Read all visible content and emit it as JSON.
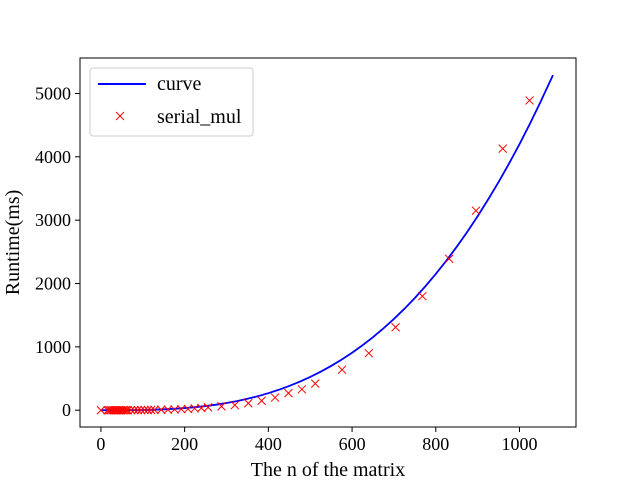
{
  "chart_data": {
    "type": "line",
    "title": "",
    "xlabel": "The n of the matrix",
    "ylabel": "Runtime(ms)",
    "xlim": [
      -50,
      1135
    ],
    "ylim": [
      -265,
      5560
    ],
    "xticks": [
      0,
      200,
      400,
      600,
      800,
      1000
    ],
    "yticks": [
      0,
      1000,
      2000,
      3000,
      4000,
      5000
    ],
    "grid": false,
    "legend": {
      "position": "top-left",
      "frame": true
    },
    "series": [
      {
        "name": "curve",
        "kind": "line",
        "color": "#0000ff",
        "model": "cubic",
        "coef_cubic": 4.2e-06,
        "x": [
          0,
          25,
          50,
          75,
          100,
          125,
          150,
          175,
          200,
          225,
          250,
          275,
          300,
          325,
          350,
          375,
          400,
          425,
          450,
          475,
          500,
          525,
          550,
          575,
          600,
          625,
          650,
          675,
          700,
          725,
          750,
          775,
          800,
          825,
          850,
          875,
          900,
          925,
          950,
          975,
          1000,
          1025,
          1050,
          1080
        ],
        "y": [
          0.0,
          0.07,
          0.53,
          1.77,
          4.2,
          8.2,
          14.18,
          22.51,
          33.6,
          47.84,
          65.63,
          87.36,
          113.4,
          144.18,
          180.08,
          221.48,
          268.8,
          322.42,
          382.73,
          450.14,
          525.0,
          607.75,
          698.78,
          798.47,
          907.2,
          1025.39,
          1153.43,
          1291.74,
          1440.6,
          1600.45,
          1771.88,
          1954.86,
          2150.4,
          2359.06,
          2579.67,
          2813.84,
          3061.8,
          3325.99,
          3601.13,
          3892.99,
          4200.0,
          4523.51,
          4862.93,
          5290.0
        ]
      },
      {
        "name": "serial_mul",
        "kind": "scatter",
        "marker": "x",
        "color": "#ff0000",
        "x": [
          0,
          16,
          20,
          24,
          28,
          32,
          36,
          40,
          44,
          48,
          52,
          56,
          60,
          64,
          72,
          80,
          88,
          96,
          104,
          112,
          120,
          128,
          144,
          160,
          176,
          192,
          208,
          224,
          240,
          256,
          288,
          320,
          352,
          384,
          416,
          448,
          480,
          512,
          576,
          640,
          704,
          768,
          832,
          896,
          960,
          1024
        ],
        "y": [
          0,
          0,
          0,
          0,
          0,
          0,
          0,
          0,
          0,
          0,
          0,
          0,
          0,
          0,
          1,
          1,
          2,
          2,
          3,
          3,
          4,
          5,
          7,
          9,
          12,
          16,
          20,
          28,
          35,
          45,
          60,
          80,
          110,
          150,
          200,
          270,
          330,
          420,
          640,
          900,
          1310,
          1800,
          2390,
          3150,
          4130,
          4890
        ]
      }
    ]
  }
}
